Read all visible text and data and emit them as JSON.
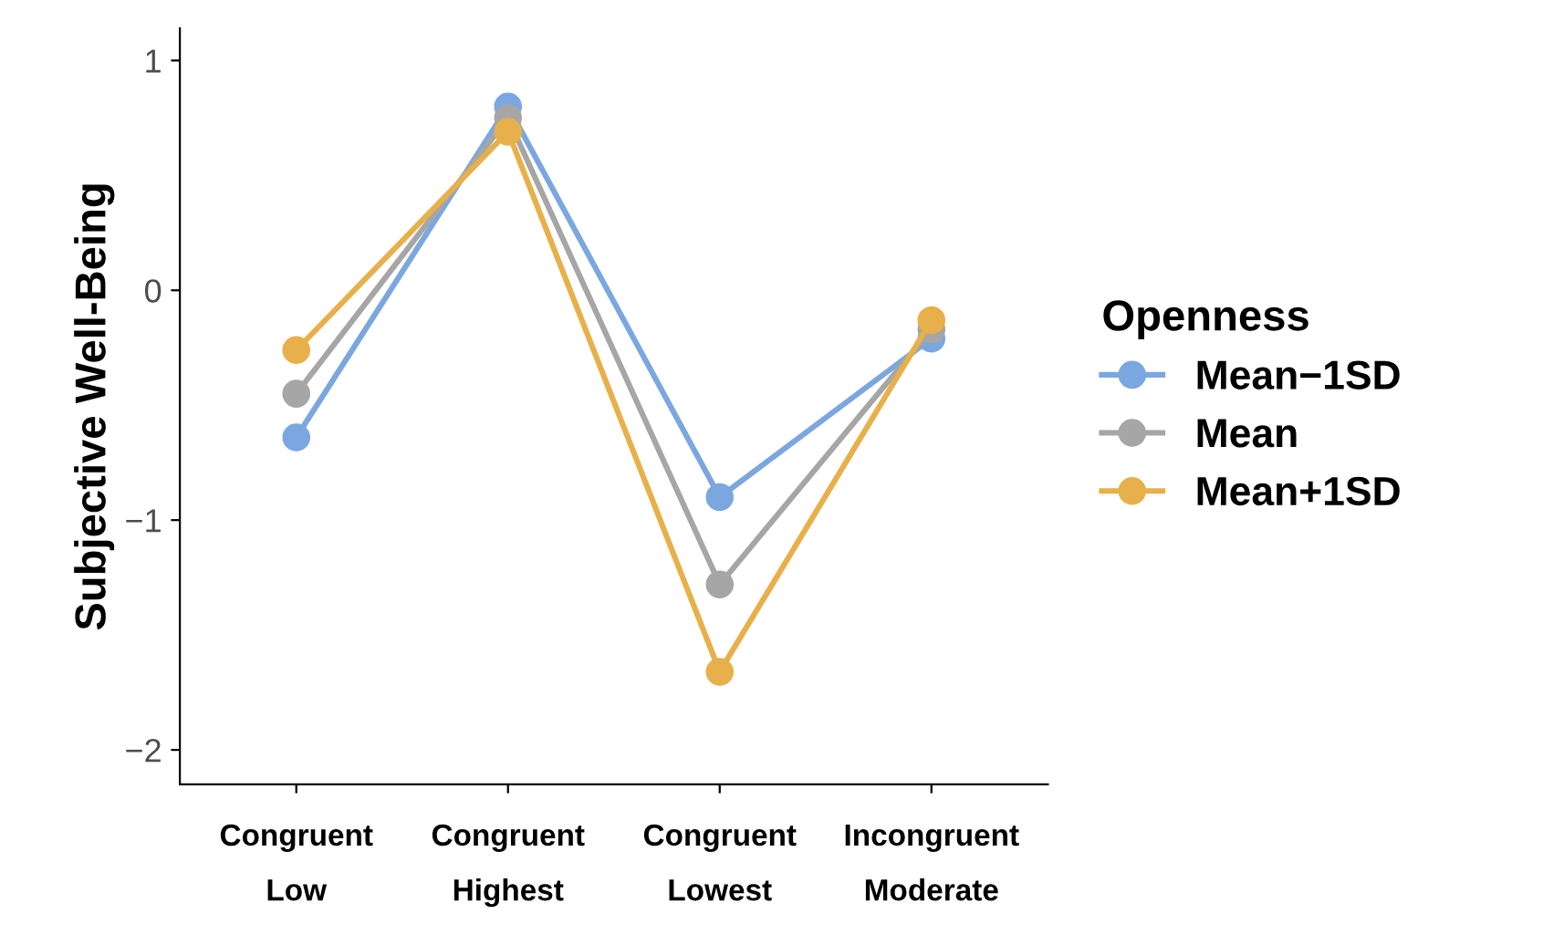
{
  "chart_data": {
    "type": "line",
    "ylabel": "Subjective Well-Being",
    "legend_title": "Openness",
    "legend": "right",
    "marker": "circle",
    "line_style": "solid",
    "grid": false,
    "categories": [
      "Congruent\nLow",
      "Congruent\nHighest",
      "Congruent\nLowest",
      "Incongruent\nModerate"
    ],
    "ylim": [
      -2.15,
      1.14
    ],
    "yticks": [
      {
        "value": -2,
        "label": "−2"
      },
      {
        "value": -1,
        "label": "−1"
      },
      0,
      1
    ],
    "series": [
      {
        "name": "Mean−1SD",
        "color": "#7ba7e0",
        "values": [
          -0.64,
          0.8,
          -0.9,
          -0.21
        ]
      },
      {
        "name": "Mean",
        "color": "#a6a6a6",
        "values": [
          -0.45,
          0.75,
          -1.28,
          -0.17
        ]
      },
      {
        "name": "Mean+1SD",
        "color": "#e8b04a",
        "values": [
          -0.26,
          0.69,
          -1.66,
          -0.13
        ]
      }
    ]
  }
}
